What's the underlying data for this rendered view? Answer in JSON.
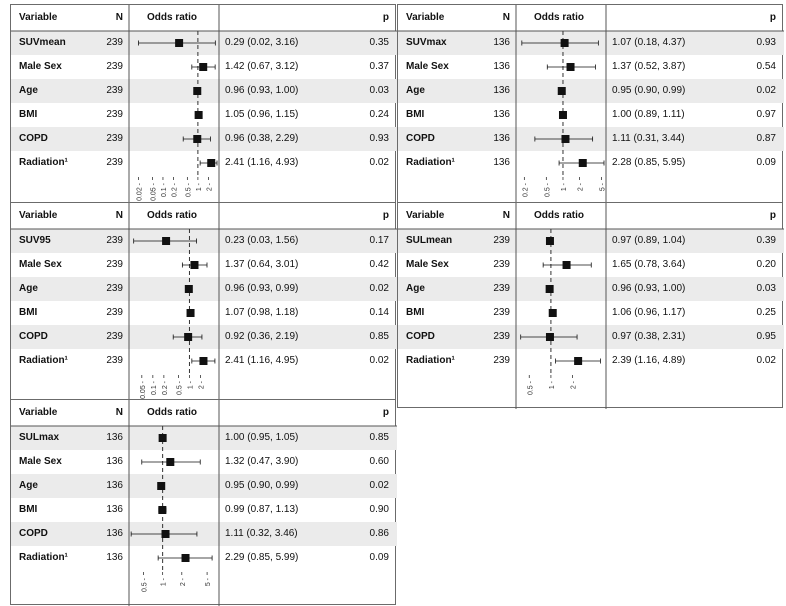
{
  "headers": {
    "variable": "Variable",
    "n": "N",
    "odds_ratio": "Odds ratio",
    "p": "p"
  },
  "colors": {
    "stripe": "#ebebeb",
    "ink": "#111111",
    "refline": "#333333"
  },
  "chart_data": [
    {
      "type": "forest",
      "xscale": "log",
      "ticks": [
        "0.02",
        "0.05",
        "0.1",
        "0.2",
        "0.5",
        "1",
        "2"
      ],
      "xlim": [
        0.013,
        3.3
      ],
      "reference": 1,
      "rows": [
        {
          "variable": "SUVmean",
          "n": "239",
          "or": 0.29,
          "lo": 0.02,
          "hi": 3.16,
          "ci_text": "0.29 (0.02, 3.16)",
          "p": "0.35"
        },
        {
          "variable": "Male Sex",
          "n": "239",
          "or": 1.42,
          "lo": 0.67,
          "hi": 3.12,
          "ci_text": "1.42 (0.67, 3.12)",
          "p": "0.37"
        },
        {
          "variable": "Age",
          "n": "239",
          "or": 0.96,
          "lo": 0.93,
          "hi": 1.0,
          "ci_text": "0.96 (0.93, 1.00)",
          "p": "0.03"
        },
        {
          "variable": "BMI",
          "n": "239",
          "or": 1.05,
          "lo": 0.96,
          "hi": 1.15,
          "ci_text": "1.05 (0.96, 1.15)",
          "p": "0.24"
        },
        {
          "variable": "COPD",
          "n": "239",
          "or": 0.96,
          "lo": 0.38,
          "hi": 2.29,
          "ci_text": "0.96 (0.38, 2.29)",
          "p": "0.93"
        },
        {
          "variable": "Radiation¹",
          "n": "239",
          "or": 2.41,
          "lo": 1.16,
          "hi": 4.93,
          "ci_text": "2.41 (1.16, 4.93)",
          "p": "0.02"
        }
      ]
    },
    {
      "type": "forest",
      "xscale": "log",
      "ticks": [
        "0.2",
        "0.5",
        "1",
        "2",
        "5"
      ],
      "xlim": [
        0.16,
        5.3
      ],
      "reference": 1,
      "rows": [
        {
          "variable": "SUVmax",
          "n": "136",
          "or": 1.07,
          "lo": 0.18,
          "hi": 4.37,
          "ci_text": "1.07 (0.18, 4.37)",
          "p": "0.93"
        },
        {
          "variable": "Male Sex",
          "n": "136",
          "or": 1.37,
          "lo": 0.52,
          "hi": 3.87,
          "ci_text": "1.37 (0.52, 3.87)",
          "p": "0.54"
        },
        {
          "variable": "Age",
          "n": "136",
          "or": 0.95,
          "lo": 0.9,
          "hi": 0.99,
          "ci_text": "0.95 (0.90, 0.99)",
          "p": "0.02"
        },
        {
          "variable": "BMI",
          "n": "136",
          "or": 1.0,
          "lo": 0.89,
          "hi": 1.11,
          "ci_text": "1.00 (0.89, 1.11)",
          "p": "0.97"
        },
        {
          "variable": "COPD",
          "n": "136",
          "or": 1.11,
          "lo": 0.31,
          "hi": 3.44,
          "ci_text": "1.11 (0.31, 3.44)",
          "p": "0.87"
        },
        {
          "variable": "Radiation¹",
          "n": "136",
          "or": 2.28,
          "lo": 0.85,
          "hi": 5.95,
          "ci_text": "2.28 (0.85, 5.95)",
          "p": "0.09"
        }
      ]
    },
    {
      "type": "forest",
      "xscale": "log",
      "ticks": [
        "0.05",
        "0.1",
        "0.2",
        "0.5",
        "1",
        "2"
      ],
      "xlim": [
        0.027,
        5.3
      ],
      "reference": 1,
      "rows": [
        {
          "variable": "SUV95",
          "n": "239",
          "or": 0.23,
          "lo": 0.03,
          "hi": 1.56,
          "ci_text": "0.23 (0.03, 1.56)",
          "p": "0.17"
        },
        {
          "variable": "Male Sex",
          "n": "239",
          "or": 1.37,
          "lo": 0.64,
          "hi": 3.01,
          "ci_text": "1.37 (0.64, 3.01)",
          "p": "0.42"
        },
        {
          "variable": "Age",
          "n": "239",
          "or": 0.96,
          "lo": 0.93,
          "hi": 0.99,
          "ci_text": "0.96 (0.93, 0.99)",
          "p": "0.02"
        },
        {
          "variable": "BMI",
          "n": "239",
          "or": 1.07,
          "lo": 0.98,
          "hi": 1.18,
          "ci_text": "1.07 (0.98, 1.18)",
          "p": "0.14"
        },
        {
          "variable": "COPD",
          "n": "239",
          "or": 0.92,
          "lo": 0.36,
          "hi": 2.19,
          "ci_text": "0.92 (0.36, 2.19)",
          "p": "0.85"
        },
        {
          "variable": "Radiation¹",
          "n": "239",
          "or": 2.41,
          "lo": 1.16,
          "hi": 4.95,
          "ci_text": "2.41 (1.16, 4.95)",
          "p": "0.02"
        }
      ]
    },
    {
      "type": "forest",
      "xscale": "log",
      "ticks": [
        "0.5",
        "1",
        "2"
      ],
      "xlim": [
        0.36,
        5.3
      ],
      "reference": 1,
      "rows": [
        {
          "variable": "SULmean",
          "n": "239",
          "or": 0.97,
          "lo": 0.89,
          "hi": 1.04,
          "ci_text": "0.97 (0.89, 1.04)",
          "p": "0.39"
        },
        {
          "variable": "Male Sex",
          "n": "239",
          "or": 1.65,
          "lo": 0.78,
          "hi": 3.64,
          "ci_text": "1.65 (0.78, 3.64)",
          "p": "0.20"
        },
        {
          "variable": "Age",
          "n": "239",
          "or": 0.96,
          "lo": 0.93,
          "hi": 1.0,
          "ci_text": "0.96 (0.93, 1.00)",
          "p": "0.03"
        },
        {
          "variable": "BMI",
          "n": "239",
          "or": 1.06,
          "lo": 0.96,
          "hi": 1.17,
          "ci_text": "1.06 (0.96, 1.17)",
          "p": "0.25"
        },
        {
          "variable": "COPD",
          "n": "239",
          "or": 0.97,
          "lo": 0.38,
          "hi": 2.31,
          "ci_text": "0.97 (0.38, 2.31)",
          "p": "0.95"
        },
        {
          "variable": "Radiation¹",
          "n": "239",
          "or": 2.39,
          "lo": 1.16,
          "hi": 4.89,
          "ci_text": "2.39 (1.16, 4.89)",
          "p": "0.02"
        }
      ]
    },
    {
      "type": "forest",
      "xscale": "log",
      "ticks": [
        "0.5",
        "1",
        "2",
        "5"
      ],
      "xlim": [
        0.33,
        6.9
      ],
      "reference": 1,
      "rows": [
        {
          "variable": "SULmax",
          "n": "136",
          "or": 1.0,
          "lo": 0.95,
          "hi": 1.05,
          "ci_text": "1.00 (0.95, 1.05)",
          "p": "0.85"
        },
        {
          "variable": "Male Sex",
          "n": "136",
          "or": 1.32,
          "lo": 0.47,
          "hi": 3.9,
          "ci_text": "1.32 (0.47, 3.90)",
          "p": "0.60"
        },
        {
          "variable": "Age",
          "n": "136",
          "or": 0.95,
          "lo": 0.9,
          "hi": 0.99,
          "ci_text": "0.95 (0.90, 0.99)",
          "p": "0.02"
        },
        {
          "variable": "BMI",
          "n": "136",
          "or": 0.99,
          "lo": 0.87,
          "hi": 1.13,
          "ci_text": "0.99 (0.87, 1.13)",
          "p": "0.90"
        },
        {
          "variable": "COPD",
          "n": "136",
          "or": 1.11,
          "lo": 0.32,
          "hi": 3.46,
          "ci_text": "1.11 (0.32, 3.46)",
          "p": "0.86"
        },
        {
          "variable": "Radiation¹",
          "n": "136",
          "or": 2.29,
          "lo": 0.85,
          "hi": 5.99,
          "ci_text": "2.29 (0.85, 5.99)",
          "p": "0.09"
        }
      ]
    }
  ]
}
